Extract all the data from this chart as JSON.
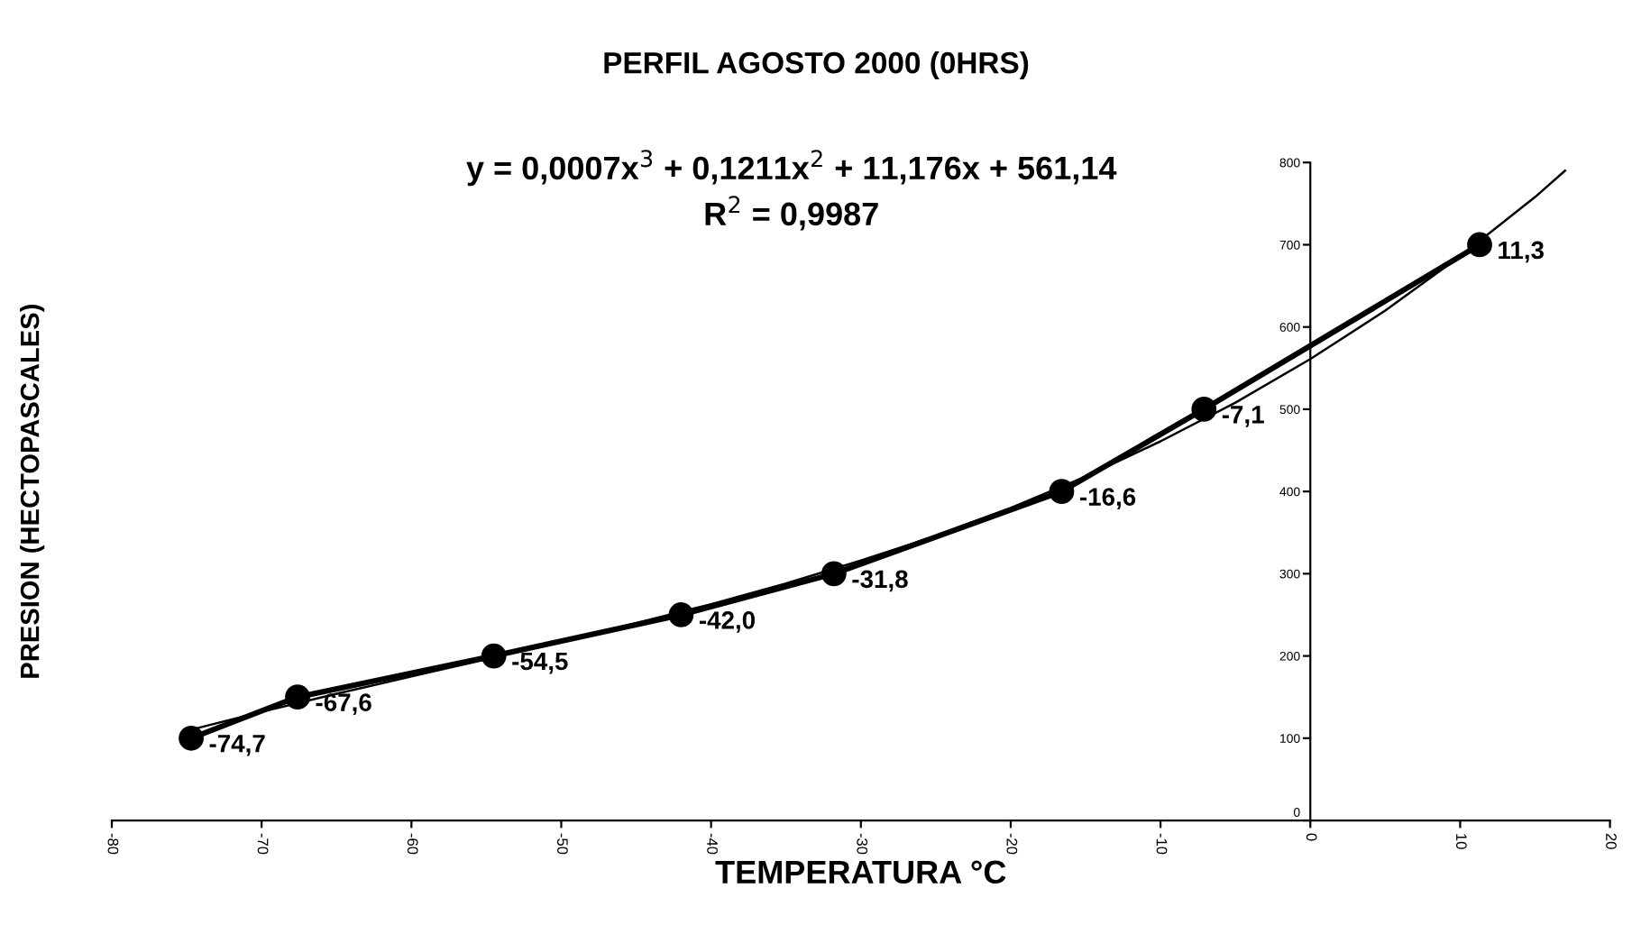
{
  "chart_data": {
    "type": "line",
    "title": "PERFIL AGOSTO 2000 (0HRS)",
    "xlabel": "TEMPERATURA °C",
    "ylabel": "PRESION (HECTOPASCALES)",
    "annotations": [
      "y = 0,0007x$^{3}$ + 0,1211x$^{2}$ + 11,176x + 561,14",
      "R$^{2}$ = 0,9987",
      {
        "text": "-74,7",
        "x": -74.7,
        "y": 100
      },
      {
        "text": "-67,6",
        "x": -67.6,
        "y": 150
      },
      {
        "text": "-54,5",
        "x": -54.5,
        "y": 200
      },
      {
        "text": "-42,0",
        "x": -42.0,
        "y": 250
      },
      {
        "text": "-31,8",
        "x": -31.8,
        "y": 300
      },
      {
        "text": "-16,6",
        "x": -16.6,
        "y": 400
      },
      {
        "text": "-7,1",
        "x": -7.1,
        "y": 500
      },
      {
        "text": "11,3",
        "x": 11.3,
        "y": 700
      }
    ],
    "xlim": [
      -80,
      20
    ],
    "xticks": [
      -80,
      -70,
      -60,
      -50,
      -40,
      -30,
      -20,
      -10,
      0,
      10,
      20
    ],
    "ylim": [
      0,
      800
    ],
    "yticks": [
      0,
      100,
      200,
      300,
      400,
      500,
      600,
      700,
      800
    ],
    "grid": false,
    "legend": false,
    "series": [
      {
        "color": "#000000",
        "marker": "circle",
        "line_style": "solid",
        "x": [
          -74.7,
          -67.6,
          -54.5,
          -42.0,
          -31.8,
          -16.6,
          -7.1,
          11.3
        ],
        "values": [
          100,
          150,
          200,
          250,
          300,
          400,
          500,
          700
        ]
      },
      {
        "color": "#000000",
        "marker": "none",
        "line_style": "solid",
        "x": [
          -75,
          -70,
          -65,
          -60,
          -55,
          -50,
          -45,
          -40,
          -35,
          -30,
          -25,
          -20,
          -15,
          -10,
          -5,
          0,
          5,
          10,
          15,
          17
        ],
        "values": [
          109,
          132,
          154,
          175,
          196,
          218,
          240,
          263,
          288,
          316,
          346,
          380,
          418,
          461,
          508,
          561,
          620,
          686,
          758,
          790
        ]
      }
    ]
  }
}
